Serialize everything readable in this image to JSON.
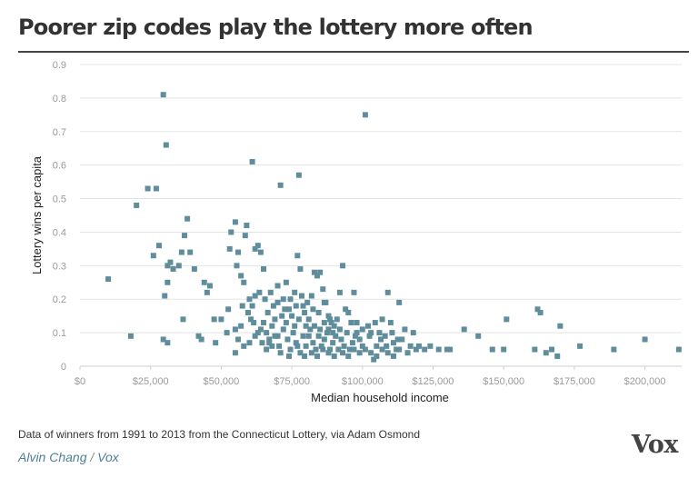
{
  "title": "Poorer zip codes play the lottery more often",
  "source": "Data of winners from 1991 to 2013 from the Connecticut Lottery, via Adam Osmond",
  "byline": {
    "author": "Alvin Chang",
    "separator": "/",
    "outlet": "Vox"
  },
  "logo": "Vox",
  "colors": {
    "point": "#5f8d9c",
    "grid": "#e3e3e3",
    "axis_text": "#9a9a9a",
    "title": "#333333",
    "byline": "#4f7f93"
  },
  "chart_data": {
    "type": "scatter",
    "title": "Poorer zip codes play the lottery more often",
    "xlabel": "Median household income",
    "ylabel": "Lottery wins per capita",
    "xlim": [
      0,
      213000
    ],
    "ylim": [
      0,
      0.9
    ],
    "grid": true,
    "legend": "none",
    "x_ticks": [
      0,
      25000,
      50000,
      75000,
      100000,
      125000,
      150000,
      175000,
      200000
    ],
    "x_tick_labels": [
      "$0",
      "$25,000",
      "$50,000",
      "$75,000",
      "$100,000",
      "$125,000",
      "$150,000",
      "$175,000",
      "$200,000"
    ],
    "y_ticks": [
      0,
      0.1,
      0.2,
      0.3,
      0.4,
      0.5,
      0.6,
      0.7,
      0.8,
      0.9
    ],
    "y_tick_labels": [
      "0",
      "0.1",
      "0.2",
      "0.3",
      "0.4",
      "0.5",
      "0.6",
      "0.7",
      "0.8",
      "0.9"
    ],
    "points": [
      [
        29500,
        0.81
      ],
      [
        30500,
        0.66
      ],
      [
        24000,
        0.53
      ],
      [
        27000,
        0.53
      ],
      [
        20000,
        0.48
      ],
      [
        10000,
        0.26
      ],
      [
        18000,
        0.09
      ],
      [
        31000,
        0.3
      ],
      [
        32000,
        0.31
      ],
      [
        33000,
        0.29
      ],
      [
        30000,
        0.21
      ],
      [
        31000,
        0.25
      ],
      [
        26000,
        0.33
      ],
      [
        28000,
        0.36
      ],
      [
        36000,
        0.34
      ],
      [
        37000,
        0.39
      ],
      [
        38000,
        0.44
      ],
      [
        39000,
        0.34
      ],
      [
        35000,
        0.3
      ],
      [
        40500,
        0.29
      ],
      [
        36500,
        0.14
      ],
      [
        29500,
        0.08
      ],
      [
        31000,
        0.07
      ],
      [
        42000,
        0.09
      ],
      [
        43000,
        0.08
      ],
      [
        45000,
        0.22
      ],
      [
        46000,
        0.24
      ],
      [
        44000,
        0.25
      ],
      [
        47500,
        0.14
      ],
      [
        50000,
        0.14
      ],
      [
        52000,
        0.1
      ],
      [
        48000,
        0.07
      ],
      [
        53000,
        0.35
      ],
      [
        55000,
        0.43
      ],
      [
        56000,
        0.34
      ],
      [
        55500,
        0.3
      ],
      [
        57000,
        0.27
      ],
      [
        58000,
        0.25
      ],
      [
        53500,
        0.4
      ],
      [
        59000,
        0.42
      ],
      [
        58500,
        0.39
      ],
      [
        61000,
        0.61
      ],
      [
        62000,
        0.35
      ],
      [
        63000,
        0.36
      ],
      [
        64000,
        0.34
      ],
      [
        65000,
        0.29
      ],
      [
        60000,
        0.2
      ],
      [
        61000,
        0.18
      ],
      [
        62000,
        0.21
      ],
      [
        63500,
        0.22
      ],
      [
        60500,
        0.14
      ],
      [
        57000,
        0.12
      ],
      [
        55000,
        0.11
      ],
      [
        52500,
        0.17
      ],
      [
        56000,
        0.08
      ],
      [
        55000,
        0.04
      ],
      [
        58000,
        0.06
      ],
      [
        60000,
        0.07
      ],
      [
        62000,
        0.09
      ],
      [
        64000,
        0.11
      ],
      [
        65000,
        0.13
      ],
      [
        66000,
        0.05
      ],
      [
        67000,
        0.08
      ],
      [
        68000,
        0.12
      ],
      [
        69000,
        0.14
      ],
      [
        70000,
        0.24
      ],
      [
        71000,
        0.54
      ],
      [
        72000,
        0.2
      ],
      [
        73000,
        0.25
      ],
      [
        74000,
        0.17
      ],
      [
        75000,
        0.15
      ],
      [
        76000,
        0.22
      ],
      [
        77000,
        0.33
      ],
      [
        77500,
        0.57
      ],
      [
        78000,
        0.29
      ],
      [
        79000,
        0.18
      ],
      [
        80000,
        0.12
      ],
      [
        81000,
        0.09
      ],
      [
        82000,
        0.21
      ],
      [
        83000,
        0.28
      ],
      [
        84000,
        0.27
      ],
      [
        85000,
        0.28
      ],
      [
        86000,
        0.23
      ],
      [
        87000,
        0.19
      ],
      [
        88000,
        0.15
      ],
      [
        89000,
        0.13
      ],
      [
        90000,
        0.12
      ],
      [
        91000,
        0.14
      ],
      [
        92000,
        0.22
      ],
      [
        93000,
        0.3
      ],
      [
        94000,
        0.17
      ],
      [
        95000,
        0.16
      ],
      [
        96000,
        0.13
      ],
      [
        97000,
        0.22
      ],
      [
        98000,
        0.1
      ],
      [
        99000,
        0.08
      ],
      [
        100000,
        0.06
      ],
      [
        101000,
        0.75
      ],
      [
        102000,
        0.12
      ],
      [
        103000,
        0.1
      ],
      [
        104000,
        0.02
      ],
      [
        105000,
        0.06
      ],
      [
        106000,
        0.1
      ],
      [
        107000,
        0.14
      ],
      [
        108000,
        0.09
      ],
      [
        109000,
        0.22
      ],
      [
        110000,
        0.13
      ],
      [
        111000,
        0.07
      ],
      [
        112000,
        0.05
      ],
      [
        113000,
        0.19
      ],
      [
        114000,
        0.08
      ],
      [
        115000,
        0.11
      ],
      [
        116000,
        0.04
      ],
      [
        117000,
        0.06
      ],
      [
        118000,
        0.1
      ],
      [
        119000,
        0.05
      ],
      [
        120000,
        0.06
      ],
      [
        122000,
        0.05
      ],
      [
        124000,
        0.06
      ],
      [
        127000,
        0.05
      ],
      [
        130000,
        0.05
      ],
      [
        131000,
        0.05
      ],
      [
        136000,
        0.11
      ],
      [
        141000,
        0.09
      ],
      [
        146000,
        0.05
      ],
      [
        150000,
        0.05
      ],
      [
        151000,
        0.14
      ],
      [
        161000,
        0.05
      ],
      [
        162000,
        0.17
      ],
      [
        163000,
        0.16
      ],
      [
        165000,
        0.04
      ],
      [
        167000,
        0.05
      ],
      [
        169000,
        0.03
      ],
      [
        170000,
        0.12
      ],
      [
        177000,
        0.06
      ],
      [
        189000,
        0.05
      ],
      [
        200000,
        0.08
      ],
      [
        212000,
        0.05
      ],
      [
        67000,
        0.07
      ],
      [
        69000,
        0.09
      ],
      [
        70500,
        0.06
      ],
      [
        72000,
        0.11
      ],
      [
        73500,
        0.08
      ],
      [
        74500,
        0.05
      ],
      [
        75500,
        0.1
      ],
      [
        76500,
        0.07
      ],
      [
        78000,
        0.04
      ],
      [
        79000,
        0.09
      ],
      [
        80000,
        0.06
      ],
      [
        81500,
        0.11
      ],
      [
        82500,
        0.07
      ],
      [
        83500,
        0.05
      ],
      [
        84500,
        0.09
      ],
      [
        85500,
        0.06
      ],
      [
        86500,
        0.08
      ],
      [
        87500,
        0.1
      ],
      [
        88500,
        0.05
      ],
      [
        89500,
        0.07
      ],
      [
        90500,
        0.09
      ],
      [
        91500,
        0.05
      ],
      [
        92500,
        0.08
      ],
      [
        93500,
        0.06
      ],
      [
        94500,
        0.1
      ],
      [
        95500,
        0.05
      ],
      [
        96500,
        0.07
      ],
      [
        97500,
        0.09
      ],
      [
        66500,
        0.16
      ],
      [
        68500,
        0.18
      ],
      [
        71500,
        0.15
      ],
      [
        73000,
        0.13
      ],
      [
        76000,
        0.12
      ],
      [
        77500,
        0.14
      ],
      [
        79500,
        0.16
      ],
      [
        81000,
        0.14
      ],
      [
        83000,
        0.12
      ],
      [
        85000,
        0.11
      ],
      [
        86500,
        0.13
      ],
      [
        88000,
        0.11
      ],
      [
        89500,
        0.1
      ],
      [
        92000,
        0.11
      ],
      [
        64500,
        0.07
      ],
      [
        66000,
        0.1
      ],
      [
        68000,
        0.06
      ],
      [
        70000,
        0.09
      ],
      [
        71000,
        0.04
      ],
      [
        74000,
        0.03
      ],
      [
        77000,
        0.06
      ],
      [
        79500,
        0.03
      ],
      [
        82000,
        0.04
      ],
      [
        84000,
        0.03
      ],
      [
        86000,
        0.05
      ],
      [
        88000,
        0.04
      ],
      [
        90000,
        0.03
      ],
      [
        93000,
        0.04
      ],
      [
        95000,
        0.03
      ],
      [
        97000,
        0.05
      ],
      [
        99000,
        0.04
      ],
      [
        101000,
        0.05
      ],
      [
        103000,
        0.04
      ],
      [
        105000,
        0.03
      ],
      [
        107000,
        0.05
      ],
      [
        109000,
        0.04
      ],
      [
        111000,
        0.03
      ],
      [
        113000,
        0.05
      ],
      [
        57500,
        0.18
      ],
      [
        59500,
        0.16
      ],
      [
        61500,
        0.13
      ],
      [
        63000,
        0.1
      ],
      [
        65500,
        0.2
      ],
      [
        67500,
        0.22
      ],
      [
        70000,
        0.19
      ],
      [
        72500,
        0.17
      ],
      [
        74500,
        0.2
      ],
      [
        76500,
        0.18
      ],
      [
        78500,
        0.21
      ],
      [
        80500,
        0.19
      ],
      [
        82500,
        0.17
      ],
      [
        84500,
        0.16
      ],
      [
        86500,
        0.19
      ],
      [
        88500,
        0.14
      ],
      [
        98000,
        0.13
      ],
      [
        100000,
        0.11
      ],
      [
        102500,
        0.09
      ],
      [
        104500,
        0.13
      ],
      [
        106500,
        0.08
      ],
      [
        108500,
        0.06
      ],
      [
        110500,
        0.1
      ],
      [
        112500,
        0.08
      ]
    ]
  }
}
